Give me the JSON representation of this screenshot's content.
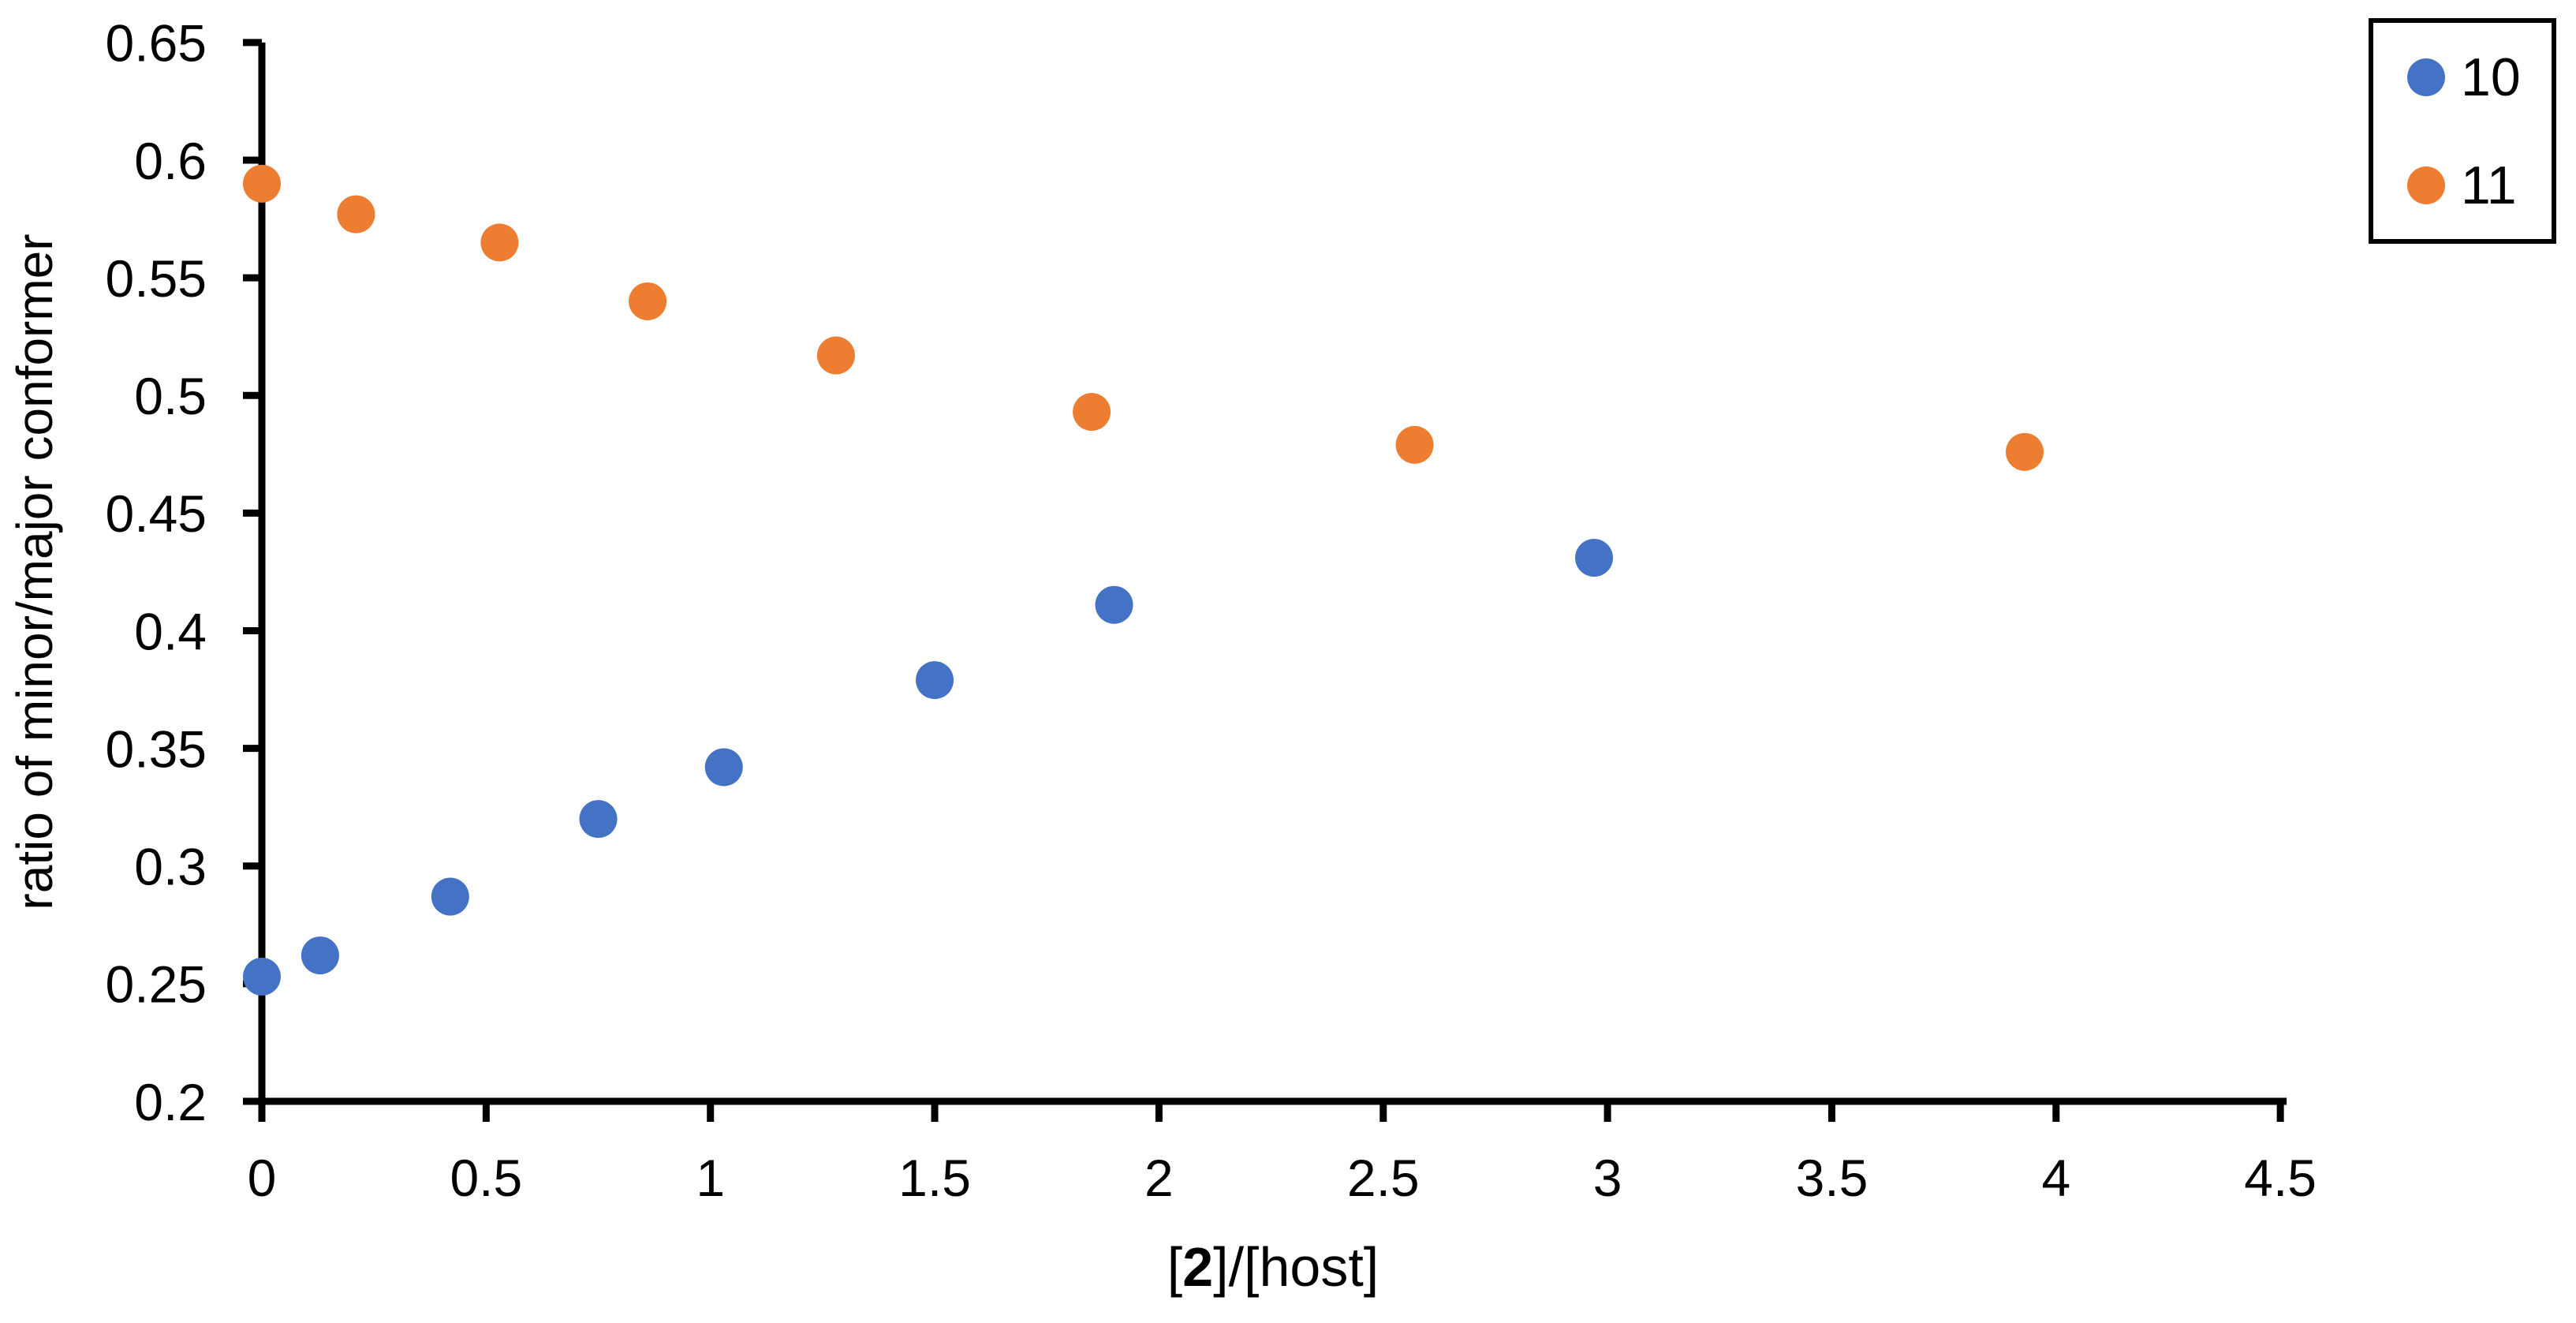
{
  "chart_data": {
    "type": "scatter",
    "title": "",
    "xlabel_parts": {
      "open": "[",
      "bold": "2",
      "rest": "]/[host]"
    },
    "ylabel": "ratio of minor/major conformer",
    "xlim": [
      0,
      4.5
    ],
    "ylim": [
      0.2,
      0.65
    ],
    "grid": false,
    "x_ticks": [
      0,
      0.5,
      1,
      1.5,
      2,
      2.5,
      3,
      3.5,
      4,
      4.5
    ],
    "x_tick_labels": [
      "0",
      "0.5",
      "1",
      "1.5",
      "2",
      "2.5",
      "3",
      "3.5",
      "4",
      "4.5"
    ],
    "y_ticks": [
      0.2,
      0.25,
      0.3,
      0.35,
      0.4,
      0.45,
      0.5,
      0.55,
      0.6,
      0.65
    ],
    "y_tick_labels": [
      "0.2",
      "0.25",
      "0.3",
      "0.35",
      "0.4",
      "0.45",
      "0.5",
      "0.55",
      "0.6",
      "0.65"
    ],
    "legend": {
      "position": "top-right",
      "entries": [
        "10",
        "11"
      ]
    },
    "series": [
      {
        "name": "10",
        "color": "#4472C4",
        "marker": "circle",
        "points": [
          [
            0,
            0.253
          ],
          [
            0.13,
            0.262
          ],
          [
            0.42,
            0.287
          ],
          [
            0.75,
            0.32
          ],
          [
            1.03,
            0.342
          ],
          [
            1.5,
            0.379
          ],
          [
            1.9,
            0.411
          ],
          [
            2.97,
            0.431
          ]
        ]
      },
      {
        "name": "11",
        "color": "#ED7D31",
        "marker": "circle",
        "points": [
          [
            0,
            0.59
          ],
          [
            0.21,
            0.577
          ],
          [
            0.53,
            0.565
          ],
          [
            0.86,
            0.54
          ],
          [
            1.28,
            0.517
          ],
          [
            1.85,
            0.493
          ],
          [
            2.57,
            0.479
          ],
          [
            3.93,
            0.476
          ]
        ]
      }
    ]
  },
  "colors": {
    "axis": "#000000",
    "text": "#000000",
    "background": "#FFFFFF",
    "series_10": "#4472C4",
    "series_11": "#ED7D31"
  }
}
